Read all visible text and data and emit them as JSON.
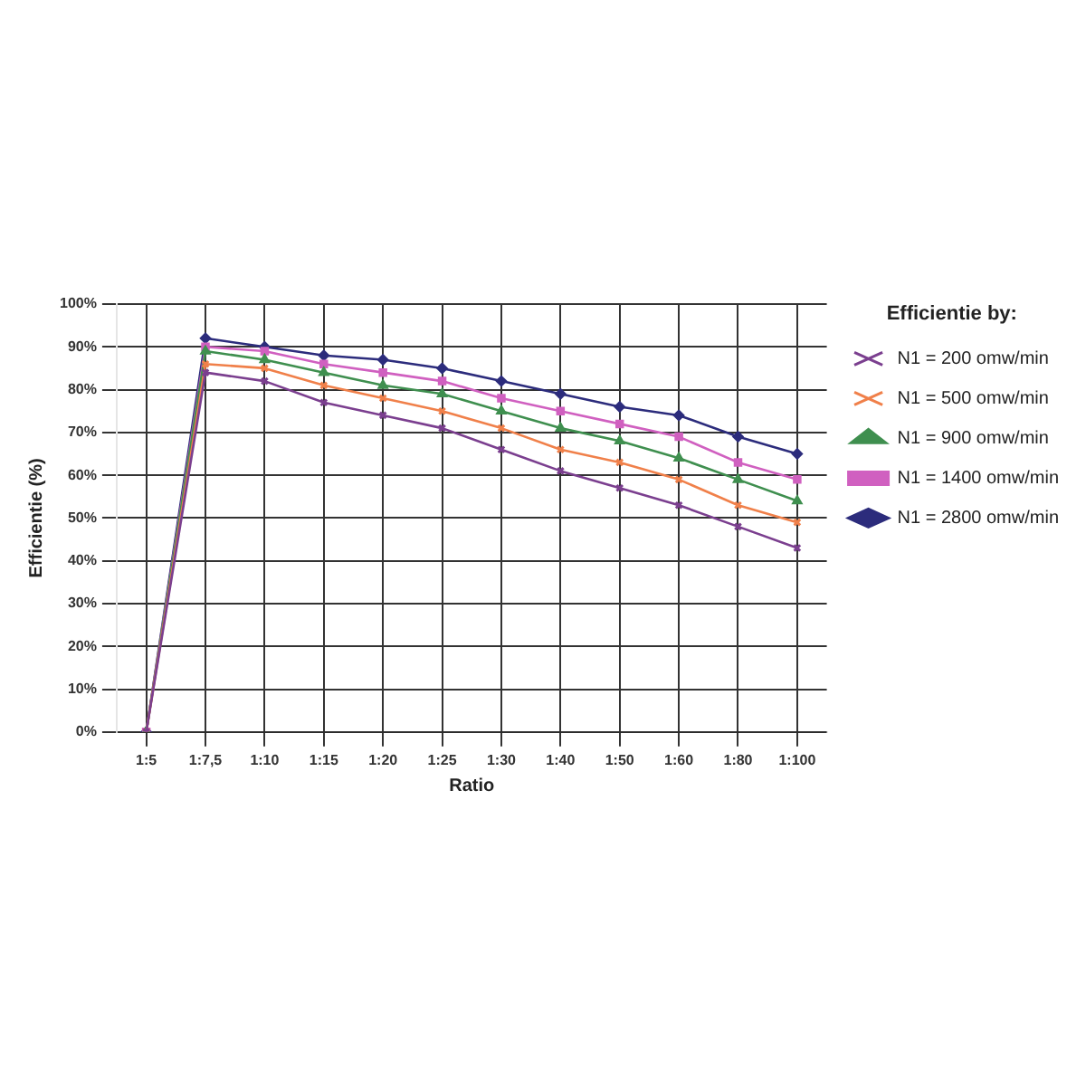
{
  "chart_data": {
    "type": "line",
    "xlabel": "Ratio",
    "ylabel": "Efficientie (%)",
    "legend_title": "Efficientie by:",
    "categories": [
      "1:5",
      "1:7,5",
      "1:10",
      "1:15",
      "1:20",
      "1:25",
      "1:30",
      "1:40",
      "1:50",
      "1:60",
      "1:80",
      "1:100"
    ],
    "series": [
      {
        "name": "N1 = 200 omw/min",
        "color": "#7b3f8f",
        "marker": "cross",
        "values": [
          0,
          84,
          82,
          77,
          74,
          71,
          66,
          61,
          57,
          53,
          48,
          43
        ]
      },
      {
        "name": "N1 = 500 omw/min",
        "color": "#f0804a",
        "marker": "cross",
        "values": [
          0,
          86,
          85,
          81,
          78,
          75,
          71,
          66,
          63,
          59,
          53,
          49
        ]
      },
      {
        "name": "N1 = 900 omw/min",
        "color": "#3f8f4f",
        "marker": "triangle",
        "values": [
          0,
          89,
          87,
          84,
          81,
          79,
          75,
          71,
          68,
          64,
          59,
          54
        ]
      },
      {
        "name": "N1 = 1400 omw/min",
        "color": "#d060c0",
        "marker": "square",
        "values": [
          0,
          90,
          89,
          86,
          84,
          82,
          78,
          75,
          72,
          69,
          63,
          59
        ]
      },
      {
        "name": "N1 = 2800 omw/min",
        "color": "#2c2c7c",
        "marker": "diamond",
        "values": [
          0,
          92,
          90,
          88,
          87,
          85,
          82,
          79,
          76,
          74,
          69,
          65
        ]
      }
    ],
    "ylim": [
      0,
      100
    ],
    "yticks": [
      {
        "value": 0,
        "label": "0%"
      },
      {
        "value": 10,
        "label": "10%"
      },
      {
        "value": 20,
        "label": "20%"
      },
      {
        "value": 30,
        "label": "30%"
      },
      {
        "value": 40,
        "label": "40%"
      },
      {
        "value": 50,
        "label": "50%"
      },
      {
        "value": 60,
        "label": "60%"
      },
      {
        "value": 70,
        "label": "70%"
      },
      {
        "value": 80,
        "label": "80%"
      },
      {
        "value": 90,
        "label": "90%"
      },
      {
        "value": 100,
        "label": "100%"
      }
    ],
    "grid": true,
    "legend": "right",
    "line_style": "solid"
  }
}
